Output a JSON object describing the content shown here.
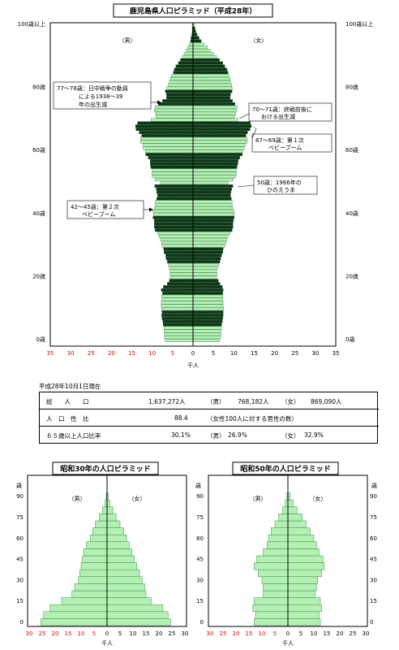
{
  "chart_data": [
    {
      "type": "population_pyramid",
      "title": "鹿児島県人口ピラミッド（平成28年）",
      "male_label": "（男）",
      "female_label": "（女）",
      "xlabel": "千人",
      "xlim": [
        -35,
        35
      ],
      "x_ticks": [
        "35",
        "30",
        "25",
        "20",
        "15",
        "10",
        "5",
        "0",
        "5",
        "10",
        "15",
        "20",
        "25",
        "30",
        "35"
      ],
      "y_ticks": [
        {
          "age": 0,
          "label": "0歳"
        },
        {
          "age": 20,
          "label": "20歳"
        },
        {
          "age": 40,
          "label": "40歳"
        },
        {
          "age": 60,
          "label": "60歳"
        },
        {
          "age": 80,
          "label": "80歳"
        },
        {
          "age": 100,
          "label": "100歳以上"
        }
      ],
      "ages": [
        0,
        1,
        2,
        3,
        4,
        5,
        6,
        7,
        8,
        9,
        10,
        11,
        12,
        13,
        14,
        15,
        16,
        17,
        18,
        19,
        20,
        21,
        22,
        23,
        24,
        25,
        26,
        27,
        28,
        29,
        30,
        31,
        32,
        33,
        34,
        35,
        36,
        37,
        38,
        39,
        40,
        41,
        42,
        43,
        44,
        45,
        46,
        47,
        48,
        49,
        50,
        51,
        52,
        53,
        54,
        55,
        56,
        57,
        58,
        59,
        60,
        61,
        62,
        63,
        64,
        65,
        66,
        67,
        68,
        69,
        70,
        71,
        72,
        73,
        74,
        75,
        76,
        77,
        78,
        79,
        80,
        81,
        82,
        83,
        84,
        85,
        86,
        87,
        88,
        89,
        90,
        91,
        92,
        93,
        94,
        95,
        96,
        97,
        98,
        99,
        100
      ],
      "male": [
        6.8,
        7.0,
        7.0,
        7.1,
        7.1,
        7.3,
        7.4,
        7.6,
        7.7,
        7.6,
        7.7,
        7.8,
        7.8,
        7.6,
        7.7,
        7.5,
        7.8,
        7.3,
        6.3,
        5.8,
        5.5,
        5.6,
        5.6,
        5.8,
        6.0,
        6.3,
        6.6,
        6.7,
        7.1,
        7.2,
        7.6,
        7.7,
        8.0,
        8.3,
        8.7,
        9.3,
        9.5,
        9.5,
        9.5,
        9.8,
        9.7,
        9.8,
        9.5,
        9.2,
        9.3,
        8.9,
        8.7,
        8.9,
        9.0,
        9.4,
        8.0,
        9.3,
        10.0,
        10.1,
        10.0,
        10.4,
        10.5,
        10.5,
        11.0,
        11.6,
        11.7,
        12.2,
        12.3,
        12.9,
        12.9,
        12.6,
        13.2,
        14.0,
        14.1,
        13.6,
        10.3,
        9.1,
        9.2,
        9.5,
        9.3,
        8.5,
        7.5,
        6.5,
        6.5,
        6.8,
        6.4,
        6.1,
        5.8,
        5.6,
        5.3,
        4.8,
        4.6,
        4.2,
        3.6,
        3.1,
        2.6,
        2.2,
        1.7,
        1.3,
        0.9,
        0.6,
        0.5,
        0.3,
        0.2,
        0.2,
        0.2
      ],
      "female": [
        6.5,
        6.8,
        6.8,
        6.9,
        7.0,
        7.0,
        7.2,
        7.3,
        7.4,
        7.4,
        7.5,
        7.4,
        7.4,
        7.3,
        7.3,
        7.3,
        7.4,
        7.2,
        6.6,
        6.2,
        5.8,
        5.9,
        5.8,
        6.0,
        6.3,
        6.6,
        6.8,
        7.0,
        7.3,
        7.4,
        7.8,
        8.1,
        8.3,
        8.6,
        9.1,
        9.6,
        9.8,
        9.8,
        9.9,
        10.1,
        10.1,
        10.1,
        9.8,
        9.6,
        9.6,
        9.4,
        9.2,
        9.3,
        9.5,
        9.8,
        8.6,
        9.9,
        10.5,
        10.7,
        10.6,
        10.8,
        11.0,
        11.1,
        11.5,
        12.1,
        12.2,
        12.6,
        12.8,
        13.3,
        13.3,
        13.0,
        13.4,
        14.0,
        14.3,
        14.1,
        11.0,
        10.2,
        10.5,
        10.7,
        10.8,
        10.3,
        9.7,
        9.1,
        9.2,
        9.6,
        9.6,
        9.5,
        9.2,
        9.1,
        8.8,
        8.6,
        8.3,
        7.8,
        7.3,
        6.5,
        5.8,
        5.0,
        4.2,
        3.5,
        2.7,
        2.0,
        1.5,
        1.0,
        0.7,
        0.5,
        0.3
      ],
      "annotations": [
        {
          "line1": "77～78歳：日中戦争の動員",
          "line2": "による1938～39",
          "line3": "年の出生減"
        },
        {
          "line1": "70～71歳：終戦前後に",
          "line2": "おける出生減"
        },
        {
          "line1": "67～69歳：第１次",
          "line2": "ベビーブーム"
        },
        {
          "line1": "50歳：1966年の",
          "line2": "ひのえうま"
        },
        {
          "line1": "42～45歳：第２次",
          "line2": "ベビーブーム"
        }
      ]
    },
    {
      "type": "population_pyramid",
      "title": "昭和30年の人口ピラミッド",
      "male_label": "（男）",
      "female_label": "（女）",
      "xlabel": "千人",
      "ylabel": "歳",
      "xlim": [
        -30,
        30
      ],
      "x_ticks": [
        "30",
        "25",
        "20",
        "15",
        "10",
        "5",
        "0",
        "5",
        "10",
        "15",
        "20",
        "25",
        "30"
      ],
      "y_ticks": [
        "0",
        "15",
        "30",
        "45",
        "60",
        "75",
        "90"
      ],
      "age_groups": [
        "0-4",
        "5-9",
        "10-14",
        "15-19",
        "20-24",
        "25-29",
        "30-34",
        "35-39",
        "40-44",
        "45-49",
        "50-54",
        "55-59",
        "60-64",
        "65-69",
        "70-74",
        "75-79",
        "80-84",
        "85-89",
        "90+"
      ],
      "male": [
        25.5,
        24.5,
        22.0,
        17.5,
        13.5,
        12.5,
        11.0,
        10.5,
        10.0,
        9.5,
        9.0,
        8.0,
        6.5,
        5.5,
        4.5,
        3.0,
        1.8,
        0.8,
        0.3
      ],
      "female": [
        24.5,
        23.5,
        21.5,
        17.0,
        15.0,
        14.5,
        13.5,
        12.5,
        11.5,
        10.5,
        9.5,
        8.5,
        7.5,
        6.5,
        5.0,
        3.5,
        2.2,
        1.0,
        0.4
      ]
    },
    {
      "type": "population_pyramid",
      "title": "昭和50年の人口ピラミッド",
      "male_label": "（男）",
      "female_label": "（女）",
      "xlabel": "千人",
      "ylabel": "歳",
      "xlim": [
        -30,
        30
      ],
      "x_ticks": [
        "30",
        "25",
        "20",
        "15",
        "10",
        "5",
        "0",
        "5",
        "10",
        "15",
        "20",
        "25",
        "30"
      ],
      "y_ticks": [
        "0",
        "15",
        "30",
        "45",
        "60",
        "75",
        "90"
      ],
      "age_groups": [
        "0-4",
        "5-9",
        "10-14",
        "15-19",
        "20-24",
        "25-29",
        "30-34",
        "35-39",
        "40-44",
        "45-49",
        "50-54",
        "55-59",
        "60-64",
        "65-69",
        "70-74",
        "75-79",
        "80-84",
        "85-89",
        "90+"
      ],
      "male": [
        13.0,
        12.5,
        13.5,
        13.0,
        9.5,
        9.5,
        10.0,
        11.5,
        13.0,
        12.0,
        9.5,
        8.0,
        7.5,
        6.5,
        5.0,
        3.5,
        2.0,
        1.0,
        0.4
      ],
      "female": [
        12.5,
        12.0,
        13.0,
        12.5,
        10.5,
        11.0,
        11.5,
        13.0,
        14.0,
        13.5,
        12.0,
        11.0,
        10.0,
        8.5,
        7.0,
        5.5,
        3.5,
        2.0,
        0.8
      ]
    }
  ],
  "stats": {
    "date_note": "平成28年10月1日現在",
    "rows": [
      {
        "label": "総　　人　　口",
        "value": "1,637,272人",
        "m_label": "（男）",
        "m_value": "768,182人",
        "f_label": "（女）",
        "f_value": "869,090人"
      },
      {
        "label": "人　口　性　比",
        "value": "88.4",
        "note": "（女性100人に対する男性の数）"
      },
      {
        "label": "６５歳以上人口比率",
        "value": "30.1%",
        "m_label": "（男）",
        "m_value": "26.9%",
        "f_label": "（女）",
        "f_value": "32.9%"
      }
    ]
  }
}
